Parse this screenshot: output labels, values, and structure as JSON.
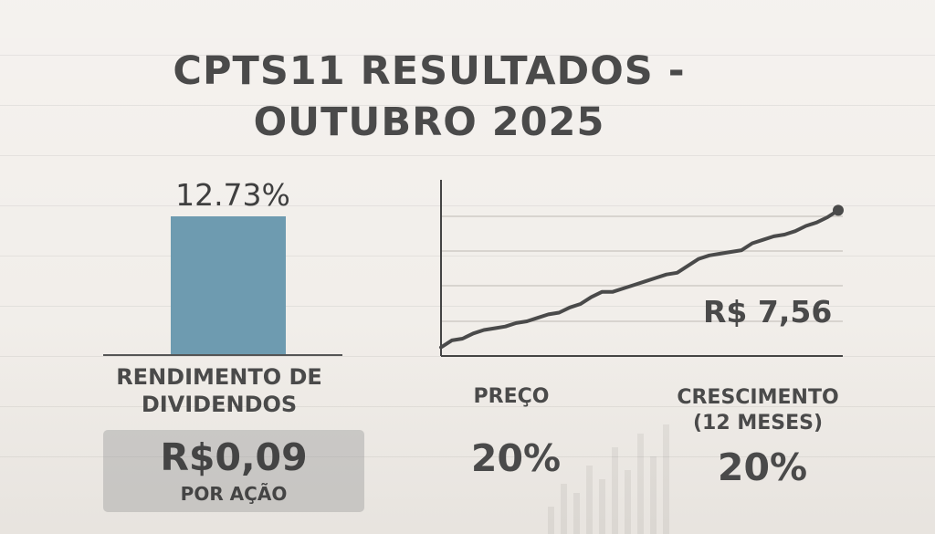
{
  "title": "CPTS11 RESULTADOS -\nOUTUBRO 2025",
  "chart_data": [
    {
      "type": "bar",
      "categories": [
        "RENDIMENTO DE DIVIDENDOS"
      ],
      "values": [
        12.73
      ],
      "value_label": "12.73%",
      "color": "#6e9bb0"
    },
    {
      "type": "line",
      "x": [
        0,
        1,
        2,
        3,
        4,
        5,
        6,
        7,
        8,
        9,
        10,
        11,
        12,
        13,
        14,
        15,
        16,
        17,
        18,
        19,
        20,
        21,
        22,
        23,
        24,
        25,
        26,
        27,
        28,
        29,
        30,
        31,
        32,
        33,
        34,
        35,
        36,
        37
      ],
      "values": [
        0.05,
        0.09,
        0.1,
        0.13,
        0.15,
        0.16,
        0.17,
        0.19,
        0.2,
        0.22,
        0.24,
        0.25,
        0.28,
        0.3,
        0.34,
        0.37,
        0.37,
        0.39,
        0.41,
        0.43,
        0.45,
        0.47,
        0.48,
        0.52,
        0.56,
        0.58,
        0.59,
        0.6,
        0.61,
        0.65,
        0.67,
        0.69,
        0.7,
        0.72,
        0.75,
        0.77,
        0.8,
        0.84
      ],
      "end_label": "R$ 7,56",
      "grid": true,
      "color": "#4a4a4a"
    }
  ],
  "dividend_per_share": {
    "value": "R$0,09",
    "label": "POR AÇÃO"
  },
  "stats": {
    "price": {
      "label": "PREÇO",
      "value": "20%"
    },
    "growth": {
      "label": "CRESCIMENTO\n(12 MESES)",
      "value": "20%"
    }
  }
}
